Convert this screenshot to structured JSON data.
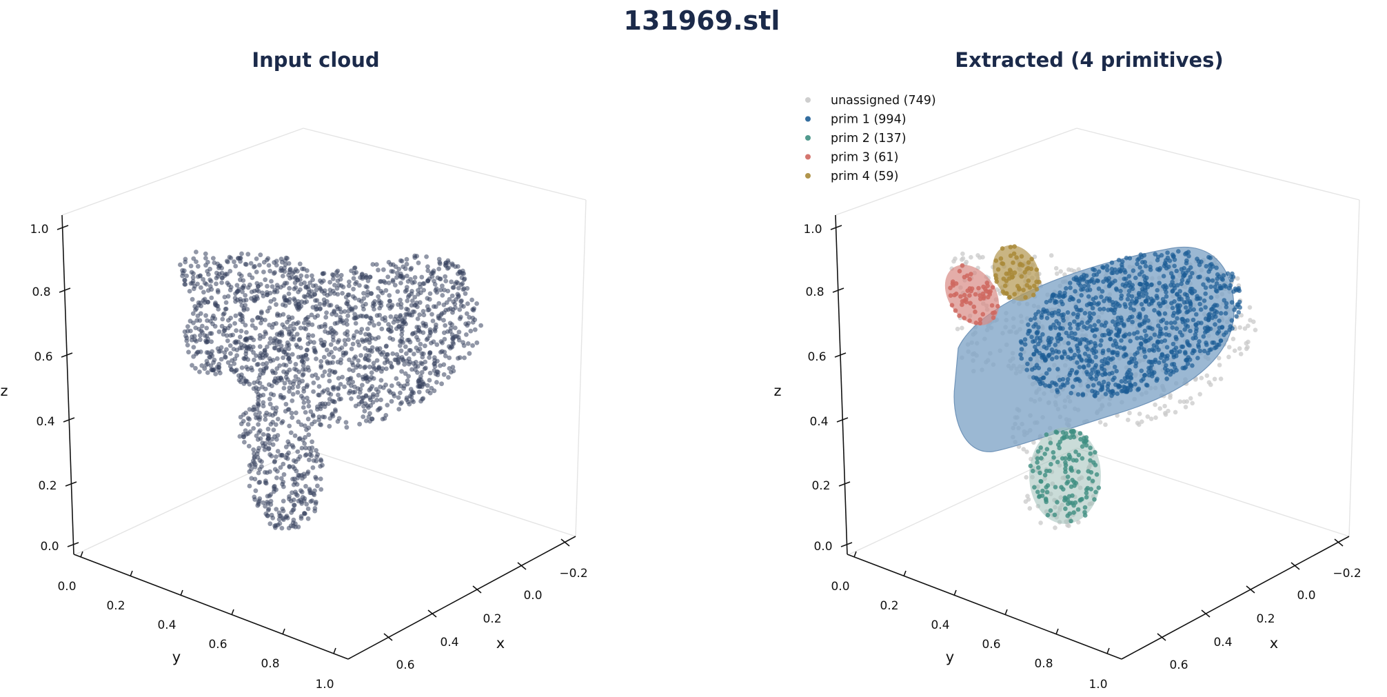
{
  "figure_title": "131969.stl",
  "colors": {
    "input_points": "#36425e",
    "unassigned": "#c9c9c9",
    "prim1": "#1d5d95",
    "prim2": "#3f8f82",
    "prim3": "#cf675f",
    "prim4": "#a98938",
    "capsule_fill": "#7fa4c6",
    "title": "#1b2a4a"
  },
  "chart_data": [
    {
      "type": "scatter",
      "title": "Input cloud",
      "xlabel": "x",
      "ylabel": "y",
      "zlabel": "z",
      "x_ticks": [
        "0.6",
        "0.4",
        "0.2",
        "0.0",
        "−0.2"
      ],
      "y_ticks": [
        "0.0",
        "0.2",
        "0.4",
        "0.6",
        "0.8",
        "1.0"
      ],
      "z_ticks": [
        "0.0",
        "0.2",
        "0.4",
        "0.6",
        "0.8",
        "1.0"
      ],
      "xlim": [
        -0.3,
        0.7
      ],
      "ylim": [
        0,
        1
      ],
      "zlim": [
        0,
        1
      ],
      "grid": false,
      "series": []
    },
    {
      "type": "scatter",
      "title": "Extracted (4 primitives)",
      "xlabel": "x",
      "ylabel": "y",
      "zlabel": "z",
      "x_ticks": [
        "0.6",
        "0.4",
        "0.2",
        "0.0",
        "−0.2"
      ],
      "y_ticks": [
        "0.0",
        "0.2",
        "0.4",
        "0.6",
        "0.8",
        "1.0"
      ],
      "z_ticks": [
        "0.0",
        "0.2",
        "0.4",
        "0.6",
        "0.8",
        "1.0"
      ],
      "xlim": [
        -0.3,
        0.7
      ],
      "ylim": [
        0,
        1
      ],
      "zlim": [
        0,
        1
      ],
      "grid": false,
      "legend_position": "top-left",
      "series": [
        {
          "name": "unassigned (749)",
          "count": 749,
          "color": "#c9c9c9"
        },
        {
          "name": "prim 1 (994)",
          "count": 994,
          "color": "#1d5d95"
        },
        {
          "name": "prim 2 (137)",
          "count": 137,
          "color": "#3f8f82"
        },
        {
          "name": "prim 3 (61)",
          "count": 61,
          "color": "#cf675f"
        },
        {
          "name": "prim 4 (59)",
          "count": 59,
          "color": "#a98938"
        }
      ]
    }
  ]
}
